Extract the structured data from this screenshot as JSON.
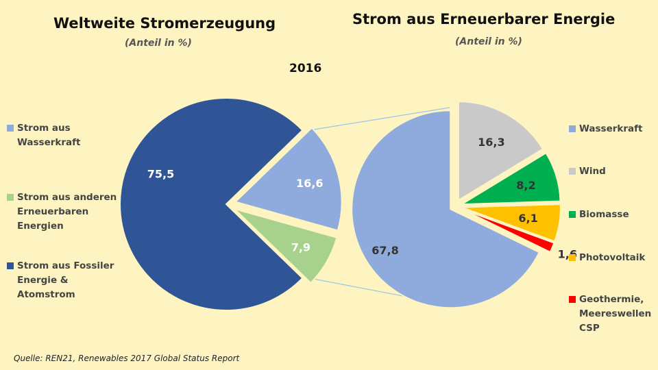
{
  "year": "2016",
  "source": "Quelle: REN21, Renewables 2017 Global Status Report",
  "colors": {
    "background": "#fdf4c1",
    "fossil": "#2f5597",
    "wasserkraft": "#8faadc",
    "other_renewables": "#a9d18e",
    "wind": "#c9c9c9",
    "biomasse": "#00b050",
    "photovoltaik": "#ffc000",
    "geothermie": "#ff0000",
    "connector": "#9dc3e6"
  },
  "chart_data": [
    {
      "type": "pie",
      "title": "Weltweite Stromerzeugung",
      "subtitle": "(Anteil in %)",
      "slices": [
        {
          "name": "Strom aus Wasserkraft",
          "legend": "Strom aus\nWasserkraft",
          "value": 16.6,
          "label": "16,6",
          "color": "#8faadc",
          "exploded": true
        },
        {
          "name": "Strom aus anderen Erneuerbaren Energien",
          "legend": "Strom aus anderen\nErneuerbaren\nEnergien",
          "value": 7.9,
          "label": "7,9",
          "color": "#a9d18e",
          "exploded": true
        },
        {
          "name": "Strom aus Fossiler Energie & Atomstrom",
          "legend": "Strom aus Fossiler\nEnergie &\nAtomstrom",
          "value": 75.5,
          "label": "75,5",
          "color": "#2f5597",
          "exploded": false
        }
      ]
    },
    {
      "type": "pie",
      "title": "Strom aus Erneuerbarer Energie",
      "subtitle": "(Anteil in %)",
      "slices": [
        {
          "name": "Wasserkraft",
          "legend": "Wasserkraft",
          "value": 67.8,
          "label": "67,8",
          "color": "#8faadc"
        },
        {
          "name": "Wind",
          "legend": "Wind",
          "value": 16.3,
          "label": "16,3",
          "color": "#c9c9c9"
        },
        {
          "name": "Biomasse",
          "legend": "Biomasse",
          "value": 8.2,
          "label": "8,2",
          "color": "#00b050"
        },
        {
          "name": "Photovoltaik",
          "legend": "Photovoltaik",
          "value": 6.1,
          "label": "6,1",
          "color": "#ffc000"
        },
        {
          "name": "Geothermie, Meereswellen CSP",
          "legend": "Geothermie,\nMeereswellen\nCSP",
          "value": 1.6,
          "label": "1,6",
          "color": "#ff0000"
        }
      ]
    }
  ]
}
